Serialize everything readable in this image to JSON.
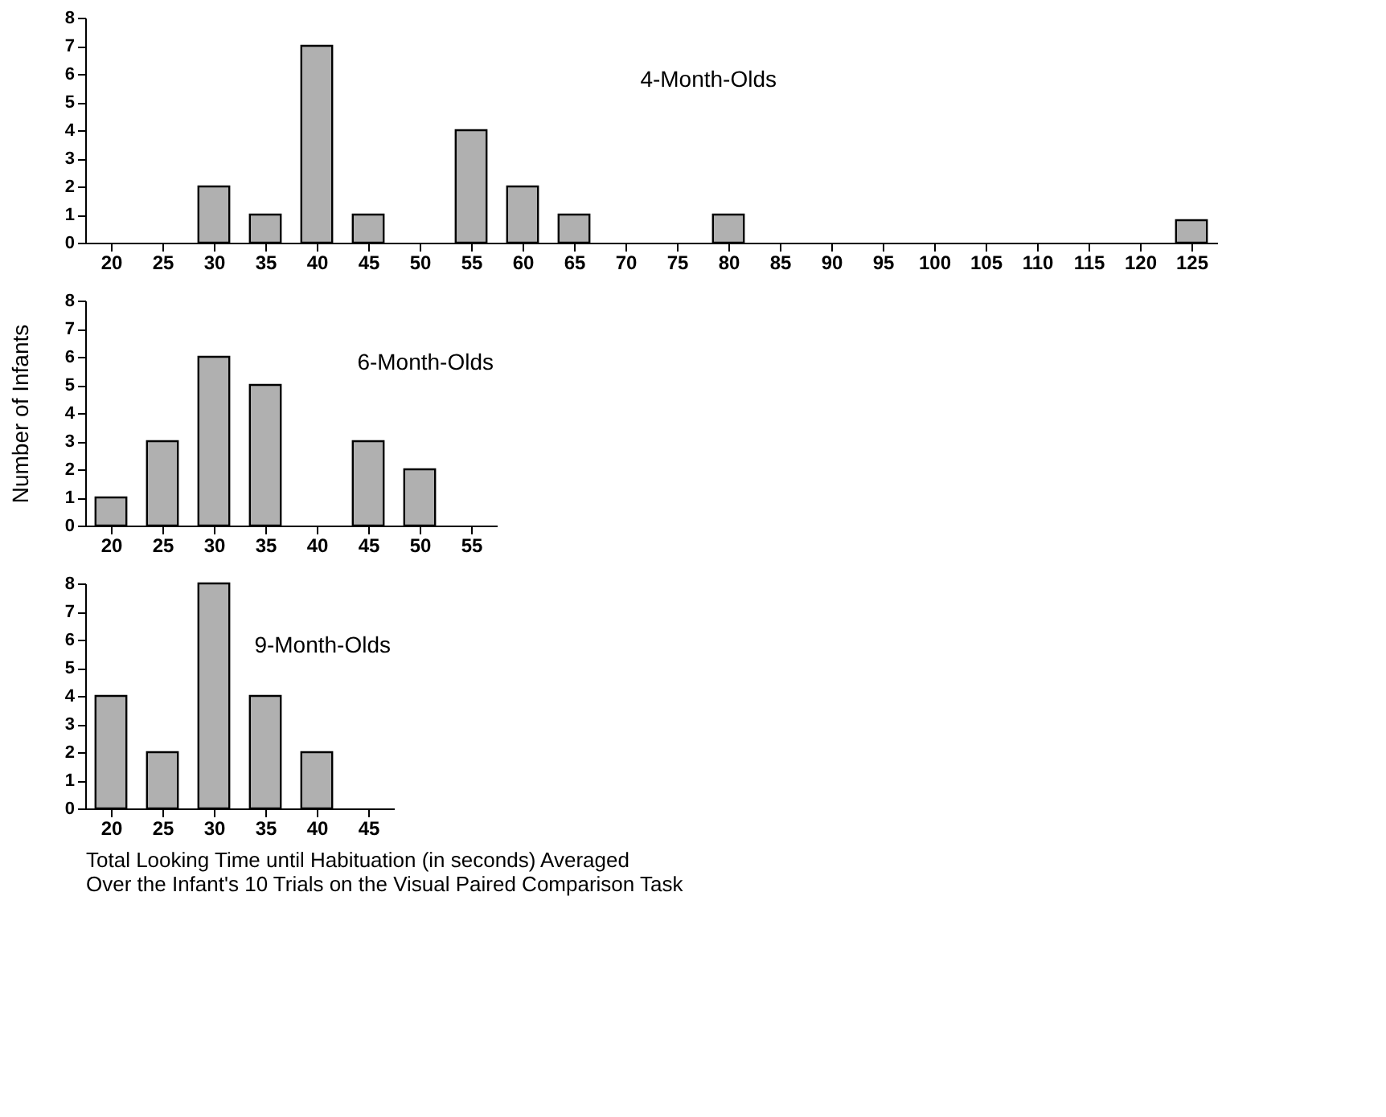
{
  "chart_data": [
    {
      "type": "bar",
      "title": "4-Month-Olds",
      "categories": [
        "20",
        "25",
        "30",
        "35",
        "40",
        "45",
        "50",
        "55",
        "60",
        "65",
        "70",
        "75",
        "80",
        "85",
        "90",
        "95",
        "100",
        "105",
        "110",
        "115",
        "120",
        "125"
      ],
      "series": [
        {
          "color": "#b0b0b0",
          "values": [
            0,
            0,
            2,
            1,
            7,
            1,
            0,
            4,
            2,
            1,
            0,
            0,
            1,
            0,
            0,
            0,
            0,
            0,
            0,
            0,
            0,
            0.8
          ]
        }
      ],
      "ylim": [
        0,
        8
      ],
      "yticks": [
        0,
        1,
        2,
        3,
        4,
        5,
        6,
        7,
        8
      ],
      "grid": false,
      "legend": false
    },
    {
      "type": "bar",
      "title": "6-Month-Olds",
      "ylabel": "Number of Infants",
      "categories": [
        "20",
        "25",
        "30",
        "35",
        "40",
        "45",
        "50",
        "55"
      ],
      "series": [
        {
          "color": "#b0b0b0",
          "values": [
            1,
            3,
            6,
            5,
            0,
            3,
            2,
            0
          ]
        }
      ],
      "ylim": [
        0,
        8
      ],
      "yticks": [
        0,
        1,
        2,
        3,
        4,
        5,
        6,
        7,
        8
      ],
      "grid": false,
      "legend": false
    },
    {
      "type": "bar",
      "title": "9-Month-Olds",
      "xlabel": "Total Looking Time until Habituation  (in seconds) Averaged\nOver the Infant's 10 Trials on the Visual Paired Comparison Task",
      "categories": [
        "20",
        "25",
        "30",
        "35",
        "40",
        "45"
      ],
      "series": [
        {
          "color": "#b0b0b0",
          "values": [
            4,
            2,
            8,
            4,
            2,
            0
          ]
        }
      ],
      "ylim": [
        0,
        8
      ],
      "yticks": [
        0,
        1,
        2,
        3,
        4,
        5,
        6,
        7,
        8
      ],
      "grid": false,
      "legend": false
    }
  ]
}
